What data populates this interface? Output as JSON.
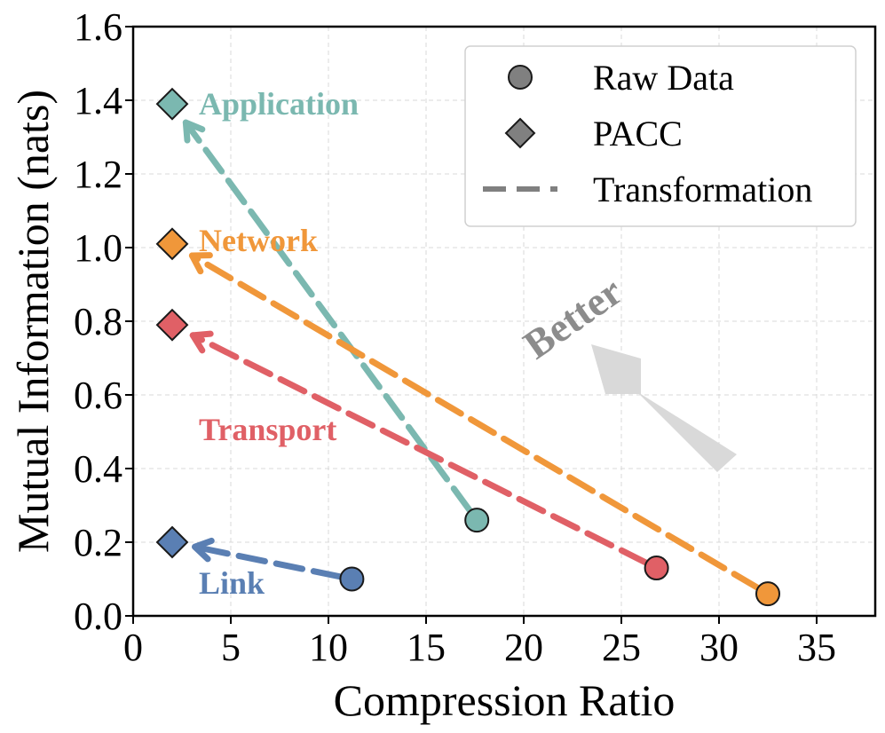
{
  "chart_data": {
    "type": "scatter",
    "title": "",
    "xlabel": "Compression Ratio",
    "ylabel": "Mutual Information (nats)",
    "xlim": [
      0,
      38
    ],
    "ylim": [
      0,
      1.6
    ],
    "xticks": [
      0,
      5,
      10,
      15,
      20,
      25,
      30,
      35
    ],
    "yticks": [
      0.0,
      0.2,
      0.4,
      0.6,
      0.8,
      1.0,
      1.2,
      1.4,
      1.6
    ],
    "xtick_labels": [
      "0",
      "5",
      "10",
      "15",
      "20",
      "25",
      "30",
      "35"
    ],
    "ytick_labels": [
      "0.0",
      "0.2",
      "0.4",
      "0.6",
      "0.8",
      "1.0",
      "1.2",
      "1.4",
      "1.6"
    ],
    "grid": true,
    "legend_position": "top-right",
    "legend": [
      {
        "label": "Raw Data",
        "marker": "circle"
      },
      {
        "label": "PACC",
        "marker": "diamond"
      },
      {
        "label": "Transformation",
        "marker": "dashed-line"
      }
    ],
    "series": [
      {
        "name": "Application",
        "color": "#7bb8b0",
        "raw": {
          "x": 17.6,
          "y": 0.26
        },
        "pacc": {
          "x": 2.0,
          "y": 1.39
        }
      },
      {
        "name": "Network",
        "color": "#f0973a",
        "raw": {
          "x": 32.5,
          "y": 0.06
        },
        "pacc": {
          "x": 2.0,
          "y": 1.01
        }
      },
      {
        "name": "Transport",
        "color": "#e06066",
        "raw": {
          "x": 26.8,
          "y": 0.13
        },
        "pacc": {
          "x": 2.0,
          "y": 0.79
        }
      },
      {
        "name": "Link",
        "color": "#5a7fb3",
        "raw": {
          "x": 11.2,
          "y": 0.1
        },
        "pacc": {
          "x": 2.0,
          "y": 0.2
        }
      }
    ],
    "annotation": {
      "text": "Better",
      "color": "#8c8c8c"
    }
  }
}
